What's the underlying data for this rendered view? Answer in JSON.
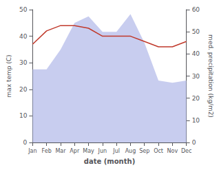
{
  "chart_data": {
    "type": "line",
    "xlabel": "date (month)",
    "ylabel": "max temp (C)",
    "y2label": "med. precipitation (kg/m2)",
    "categories": [
      "Jan",
      "Feb",
      "Mar",
      "Apr",
      "May",
      "Jun",
      "Jul",
      "Aug",
      "Sep",
      "Oct",
      "Nov",
      "Dec"
    ],
    "series": [
      {
        "type": "area",
        "axis": "y2",
        "color": "#b0b8e8",
        "values": [
          33,
          33,
          42,
          54,
          57,
          50,
          50,
          58,
          45,
          28,
          27,
          28
        ]
      },
      {
        "type": "line",
        "color": "#c0392b",
        "values": [
          37,
          42,
          44,
          44,
          43,
          40,
          40,
          40,
          38,
          36,
          36,
          38
        ]
      }
    ],
    "ylim": [
      0,
      50
    ],
    "yticks": [
      0,
      10,
      20,
      30,
      40,
      50
    ],
    "y2lim": [
      0,
      60
    ],
    "y2ticks": [
      0,
      10,
      20,
      30,
      40,
      50,
      60
    ],
    "grid": false
  }
}
